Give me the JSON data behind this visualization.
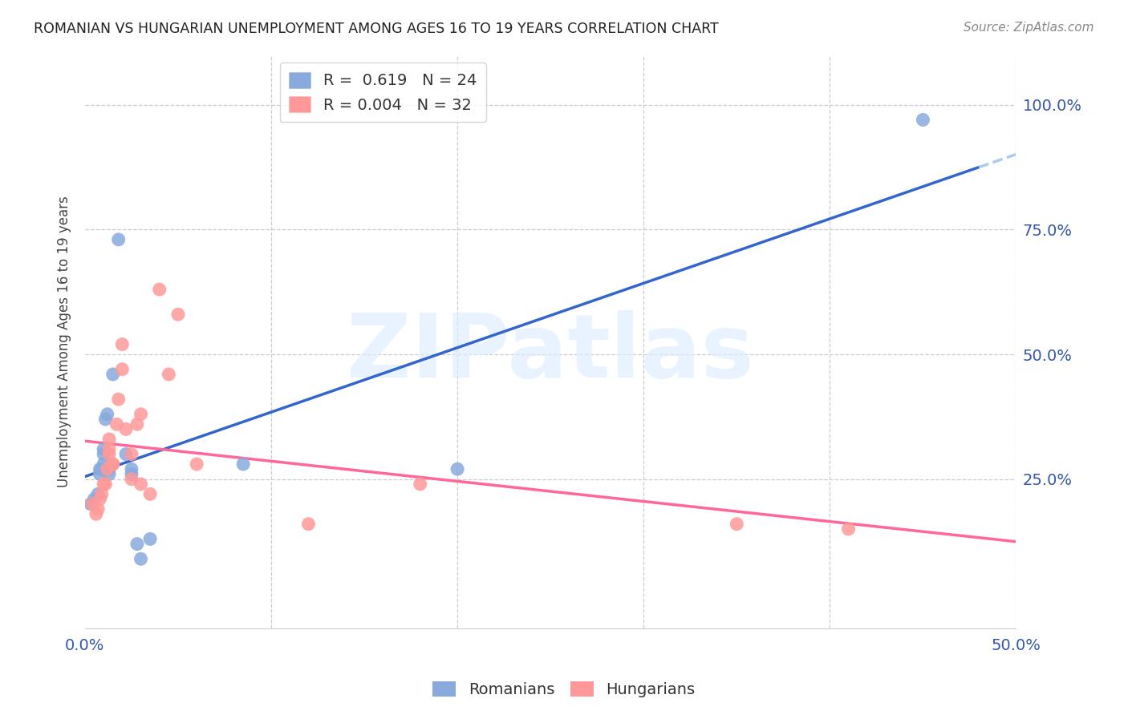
{
  "title": "ROMANIAN VS HUNGARIAN UNEMPLOYMENT AMONG AGES 16 TO 19 YEARS CORRELATION CHART",
  "source": "Source: ZipAtlas.com",
  "ylabel": "Unemployment Among Ages 16 to 19 years",
  "legend_romanian": "R =  0.619   N = 24",
  "legend_hungarian": "R = 0.004   N = 32",
  "romanian_color": "#88AADD",
  "hungarian_color": "#FF9999",
  "romanian_line_color": "#3366CC",
  "hungarian_line_color": "#FF6699",
  "dashed_line_color": "#AACCEE",
  "xlim": [
    0.0,
    0.5
  ],
  "ylim": [
    -0.05,
    1.1
  ],
  "yticks": [
    0.25,
    0.5,
    0.75,
    1.0
  ],
  "ytick_labels": [
    "25.0%",
    "50.0%",
    "75.0%",
    "100.0%"
  ],
  "xticks": [
    0.0,
    0.1,
    0.2,
    0.3,
    0.4,
    0.5
  ],
  "xtick_labels": [
    "0.0%",
    "",
    "",
    "",
    "",
    "50.0%"
  ],
  "roman_x": [
    0.003,
    0.005,
    0.007,
    0.008,
    0.008,
    0.009,
    0.01,
    0.01,
    0.01,
    0.011,
    0.012,
    0.013,
    0.013,
    0.015,
    0.018,
    0.022,
    0.025,
    0.025,
    0.028,
    0.03,
    0.035,
    0.085,
    0.2,
    0.45
  ],
  "roman_y": [
    0.2,
    0.21,
    0.22,
    0.26,
    0.27,
    0.27,
    0.28,
    0.3,
    0.31,
    0.37,
    0.38,
    0.26,
    0.27,
    0.46,
    0.73,
    0.3,
    0.27,
    0.26,
    0.12,
    0.09,
    0.13,
    0.28,
    0.27,
    0.97
  ],
  "hung_x": [
    0.004,
    0.006,
    0.007,
    0.008,
    0.009,
    0.01,
    0.011,
    0.012,
    0.013,
    0.013,
    0.013,
    0.015,
    0.015,
    0.017,
    0.018,
    0.02,
    0.02,
    0.022,
    0.025,
    0.025,
    0.028,
    0.03,
    0.03,
    0.035,
    0.04,
    0.045,
    0.05,
    0.06,
    0.12,
    0.18,
    0.35,
    0.41
  ],
  "hung_y": [
    0.2,
    0.18,
    0.19,
    0.21,
    0.22,
    0.24,
    0.24,
    0.27,
    0.3,
    0.31,
    0.33,
    0.28,
    0.28,
    0.36,
    0.41,
    0.47,
    0.52,
    0.35,
    0.25,
    0.3,
    0.36,
    0.38,
    0.24,
    0.22,
    0.63,
    0.46,
    0.58,
    0.28,
    0.16,
    0.24,
    0.16,
    0.15
  ],
  "axis_color": "#3355AA",
  "grid_color": "#CCCCCC",
  "title_color": "#222222",
  "source_color": "#888888",
  "label_color": "#444444",
  "watermark_color": "#DDEEFF"
}
